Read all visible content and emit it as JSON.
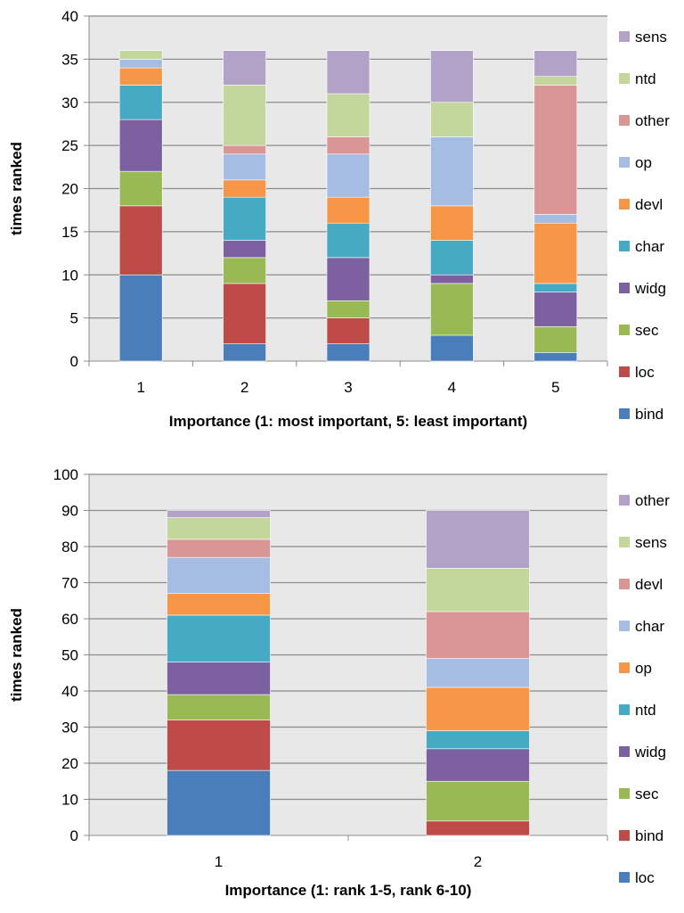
{
  "chart_data": [
    {
      "type": "bar",
      "stacked": true,
      "xlabel": "Importance (1: most important, 5: least important)",
      "ylabel": "times ranked",
      "ylim": [
        0,
        40
      ],
      "yticks": [
        0,
        5,
        10,
        15,
        20,
        25,
        30,
        35,
        40
      ],
      "grid": true,
      "legend_position": "right",
      "categories": [
        "1",
        "2",
        "3",
        "4",
        "5"
      ],
      "series": [
        {
          "name": "bind",
          "color": "#4a7ebb",
          "values": [
            10,
            2,
            2,
            3,
            1
          ]
        },
        {
          "name": "loc",
          "color": "#be4b48",
          "values": [
            8,
            7,
            3,
            0,
            0
          ]
        },
        {
          "name": "sec",
          "color": "#98b954",
          "values": [
            4,
            3,
            2,
            6,
            3
          ]
        },
        {
          "name": "widg",
          "color": "#7d60a0",
          "values": [
            6,
            2,
            5,
            1,
            4
          ]
        },
        {
          "name": "char",
          "color": "#46aac5",
          "values": [
            4,
            5,
            4,
            4,
            1
          ]
        },
        {
          "name": "devl",
          "color": "#f79646",
          "values": [
            2,
            2,
            3,
            4,
            7
          ]
        },
        {
          "name": "op",
          "color": "#a5bde2",
          "values": [
            1,
            3,
            5,
            8,
            1
          ]
        },
        {
          "name": "other",
          "color": "#da9694",
          "values": [
            0,
            1,
            2,
            0,
            15
          ]
        },
        {
          "name": "ntd",
          "color": "#c3d69b",
          "values": [
            1,
            7,
            5,
            4,
            1
          ]
        },
        {
          "name": "sens",
          "color": "#b3a2c7",
          "values": [
            0,
            4,
            5,
            6,
            3
          ]
        }
      ]
    },
    {
      "type": "bar",
      "stacked": true,
      "xlabel": "Importance (1: rank 1-5, rank 6-10)",
      "ylabel": "times ranked",
      "ylim": [
        0,
        100
      ],
      "yticks": [
        0,
        10,
        20,
        30,
        40,
        50,
        60,
        70,
        80,
        90,
        100
      ],
      "grid": true,
      "legend_position": "right",
      "categories": [
        "1",
        "2"
      ],
      "series": [
        {
          "name": "loc",
          "color": "#4a7ebb",
          "values": [
            18,
            0
          ]
        },
        {
          "name": "bind",
          "color": "#be4b48",
          "values": [
            14,
            4
          ]
        },
        {
          "name": "sec",
          "color": "#98b954",
          "values": [
            7,
            11
          ]
        },
        {
          "name": "widg",
          "color": "#7d60a0",
          "values": [
            9,
            9
          ]
        },
        {
          "name": "ntd",
          "color": "#46aac5",
          "values": [
            13,
            5
          ]
        },
        {
          "name": "op",
          "color": "#f79646",
          "values": [
            6,
            12
          ]
        },
        {
          "name": "char",
          "color": "#a5bde2",
          "values": [
            10,
            8
          ]
        },
        {
          "name": "devl",
          "color": "#da9694",
          "values": [
            5,
            13
          ]
        },
        {
          "name": "sens",
          "color": "#c3d69b",
          "values": [
            6,
            12
          ]
        },
        {
          "name": "other",
          "color": "#b3a2c7",
          "values": [
            2,
            16
          ]
        }
      ]
    }
  ],
  "style": {
    "plot_background": "#e8e8e8",
    "gridline_color": "#8c8c8c",
    "axis_color": "#8c8c8c"
  }
}
